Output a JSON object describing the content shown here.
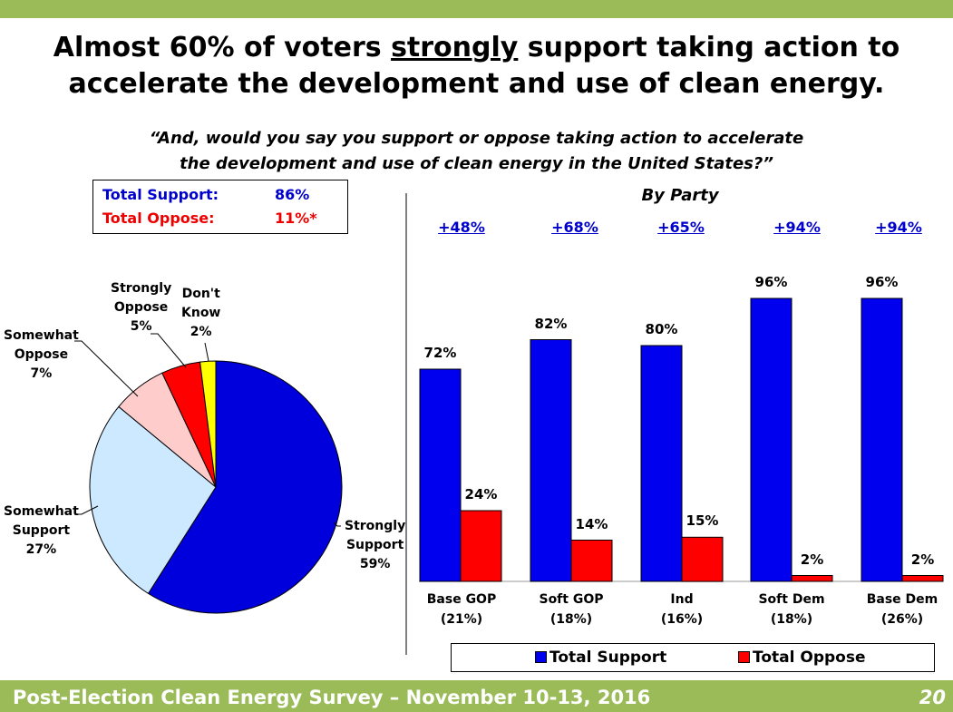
{
  "title": {
    "line1_prefix": "Almost 60% of voters",
    "line1_emphasis": "strongly",
    "line1_suffix": "support taking action to",
    "line2": "accelerate the development and use of clean energy."
  },
  "subtitle": {
    "line1": "“And, would you say you support or oppose taking action to accelerate",
    "line2": "the development and use of clean energy in the United States?”"
  },
  "totals": {
    "support_label": "Total Support:",
    "support_value": "86%",
    "oppose_label": "Total Oppose:",
    "oppose_value": "11%*"
  },
  "footer": {
    "text": "Post-Election Clean Energy Survey – November 10-13, 2016",
    "page": "20"
  },
  "colors": {
    "support": "#0000ee",
    "oppose": "#ff0000",
    "strongly_support": "#0000dd",
    "somewhat_support": "#cce9ff",
    "somewhat_oppose": "#ffcccc",
    "strongly_oppose": "#ff0000",
    "dont_know": "#ffff00",
    "band": "#9bbb59"
  },
  "chart_data": [
    {
      "type": "pie",
      "title": "",
      "slices": [
        {
          "label_line1": "Strongly",
          "label_line2": "Support",
          "value": 59,
          "value_label": "59%",
          "color": "#0000dd"
        },
        {
          "label_line1": "Somewhat",
          "label_line2": "Support",
          "value": 27,
          "value_label": "27%",
          "color": "#cce9ff"
        },
        {
          "label_line1": "Somewhat",
          "label_line2": "Oppose",
          "value": 7,
          "value_label": "7%",
          "color": "#ffcccc"
        },
        {
          "label_line1": "Strongly",
          "label_line2": "Oppose",
          "value": 5,
          "value_label": "5%",
          "color": "#ff0000"
        },
        {
          "label_line1": "Don't",
          "label_line2": "Know",
          "value": 2,
          "value_label": "2%",
          "color": "#ffff00"
        }
      ]
    },
    {
      "type": "bar",
      "title": "By Party",
      "categories": [
        "Base GOP",
        "Soft GOP",
        "Ind",
        "Soft Dem",
        "Base Dem"
      ],
      "category_sizes": [
        "(21%)",
        "(18%)",
        "(16%)",
        "(18%)",
        "(26%)"
      ],
      "margins": [
        "+48%",
        "+68%",
        "+65%",
        "+94%",
        "+94%"
      ],
      "series": [
        {
          "name": "Total Support",
          "values": [
            72,
            82,
            80,
            96,
            96
          ],
          "labels": [
            "72%",
            "82%",
            "80%",
            "96%",
            "96%"
          ],
          "color": "#0000ee"
        },
        {
          "name": "Total Oppose",
          "values": [
            24,
            14,
            15,
            2,
            2
          ],
          "labels": [
            "24%",
            "14%",
            "15%",
            "2%",
            "2%"
          ],
          "color": "#ff0000"
        }
      ],
      "ylim": [
        0,
        100
      ],
      "legend_position": "bottom"
    }
  ]
}
